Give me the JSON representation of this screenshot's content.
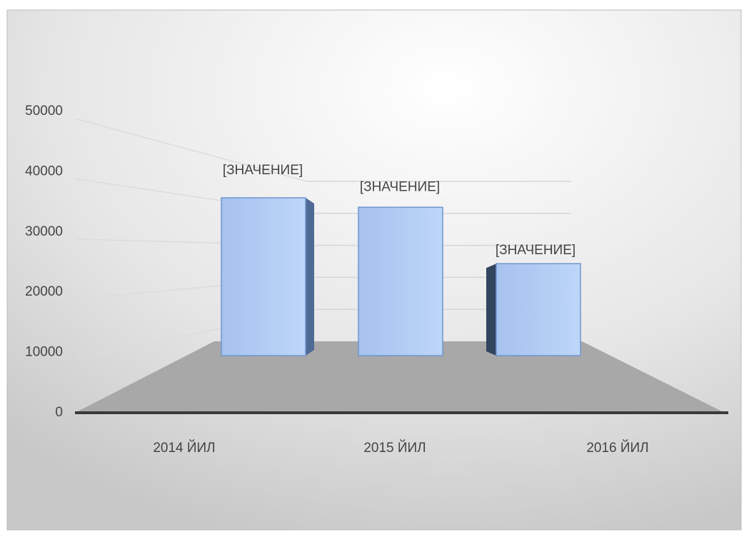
{
  "chart_data": {
    "type": "bar3d",
    "categories": [
      "2014 ЙИЛ",
      "2015 ЙИЛ",
      "2016 ЙИЛ"
    ],
    "values": [
      41700,
      39200,
      24300
    ],
    "data_labels": [
      "[ЗНАЧЕНИЕ]",
      "[ЗНАЧЕНИЕ]",
      "[ЗНАЧЕНИЕ]"
    ],
    "color": "#a9c6f0",
    "ylim": [
      0,
      50000
    ],
    "yticks": [
      0,
      10000,
      20000,
      30000,
      40000,
      50000
    ],
    "grid": true
  }
}
